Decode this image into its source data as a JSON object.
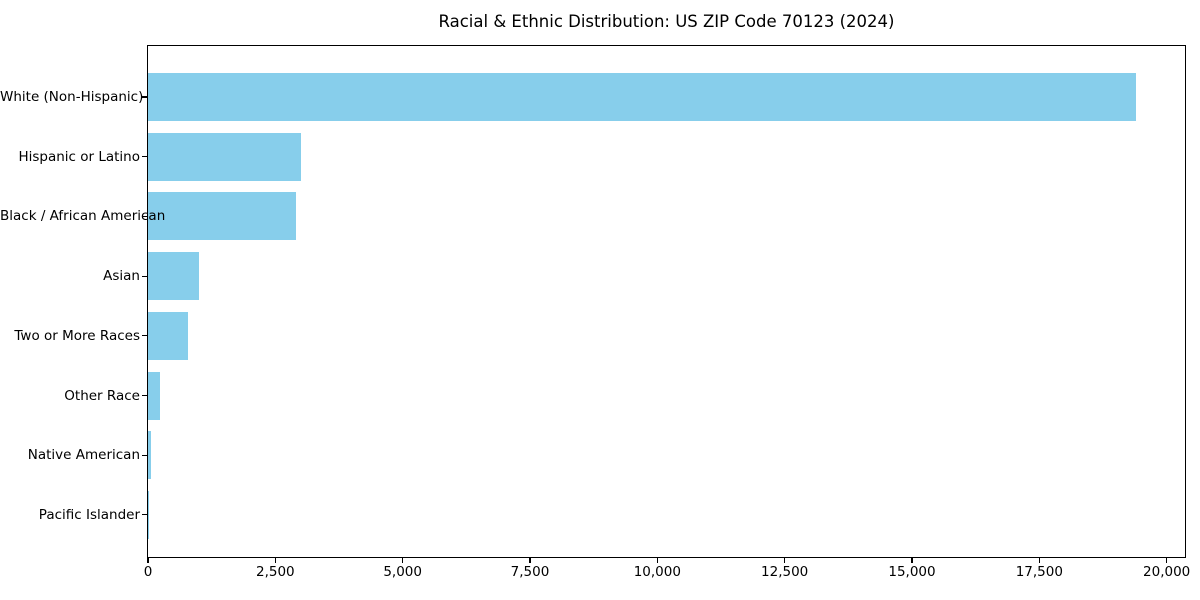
{
  "chart_data": {
    "type": "bar",
    "orientation": "horizontal",
    "title": "Racial & Ethnic Distribution: US ZIP Code 70123 (2024)",
    "categories": [
      "White (Non-Hispanic)",
      "Hispanic or Latino",
      "Black / African American",
      "Asian",
      "Two or More Races",
      "Other Race",
      "Native American",
      "Pacific Islander"
    ],
    "values": [
      19400,
      3000,
      2900,
      1000,
      780,
      240,
      60,
      10
    ],
    "xlabel": "",
    "ylabel": "",
    "xlim": [
      0,
      20360
    ],
    "xticks": [
      0,
      2500,
      5000,
      7500,
      10000,
      12500,
      15000,
      17500,
      20000
    ],
    "grid": false,
    "legend": null,
    "bar_color": "#87CEEB",
    "axis_color": "#000000",
    "text_color": "#000000",
    "background_color": "#ffffff"
  }
}
